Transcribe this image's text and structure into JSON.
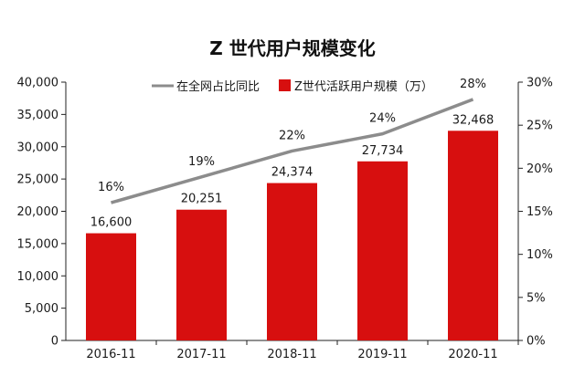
{
  "chart_data": {
    "type": "bar",
    "title": "Z 世代用户规模变化",
    "categories": [
      "2016-11",
      "2017-11",
      "2018-11",
      "2019-11",
      "2020-11"
    ],
    "series": [
      {
        "name": "Z世代活跃用户规模（万）",
        "type": "bar",
        "axis": "left",
        "values": [
          16600,
          20251,
          24374,
          27734,
          32468
        ],
        "labels": [
          "16,600",
          "20,251",
          "24,374",
          "27,734",
          "32,468"
        ],
        "color": "#d70f0f"
      },
      {
        "name": "在全网占比同比",
        "type": "line",
        "axis": "right",
        "values": [
          16,
          19,
          22,
          24,
          28
        ],
        "labels": [
          "16%",
          "19%",
          "22%",
          "24%",
          "28%"
        ],
        "color": "#8c8c8c"
      }
    ],
    "y_left": {
      "range": [
        0,
        40000
      ],
      "ticks": [
        0,
        5000,
        10000,
        15000,
        20000,
        25000,
        30000,
        35000,
        40000
      ],
      "tick_labels": [
        "0",
        "5,000",
        "10,000",
        "15,000",
        "20,000",
        "25,000",
        "30,000",
        "35,000",
        "40,000"
      ]
    },
    "y_right": {
      "range": [
        0,
        30
      ],
      "ticks": [
        0,
        5,
        10,
        15,
        20,
        25,
        30
      ],
      "tick_labels": [
        "0%",
        "5%",
        "10%",
        "15%",
        "20%",
        "25%",
        "30%"
      ]
    },
    "grid": false,
    "legend_position": "top"
  }
}
